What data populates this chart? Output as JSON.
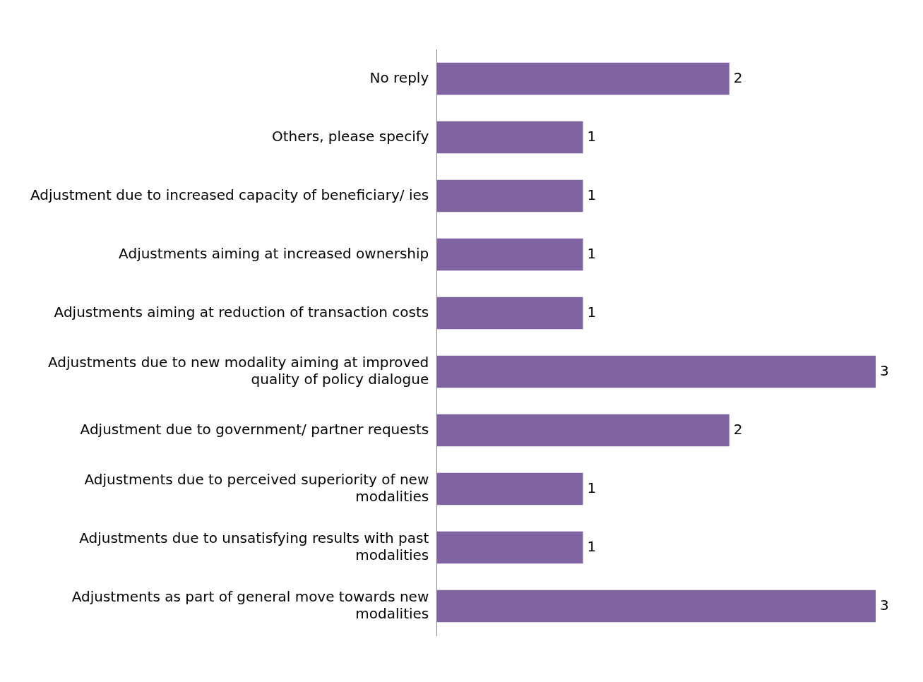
{
  "chart_data": {
    "type": "bar",
    "orientation": "horizontal",
    "categories": [
      "No reply",
      "Others, please specify",
      "Adjustment due to increased capacity of beneficiary/ ies",
      "Adjustments aiming at increased ownership",
      "Adjustments aiming at reduction of transaction costs",
      "Adjustments due to new modality aiming at improved quality of policy dialogue",
      "Adjustment due to government/ partner requests",
      "Adjustments due to perceived superiority of new modalities",
      "Adjustments due to unsatisfying results with past modalities",
      "Adjustments as part of general move towards new modalities"
    ],
    "values": [
      2,
      1,
      1,
      1,
      1,
      3,
      2,
      1,
      1,
      3
    ],
    "color": "#8064a2",
    "data_labels": true,
    "legend": false
  }
}
